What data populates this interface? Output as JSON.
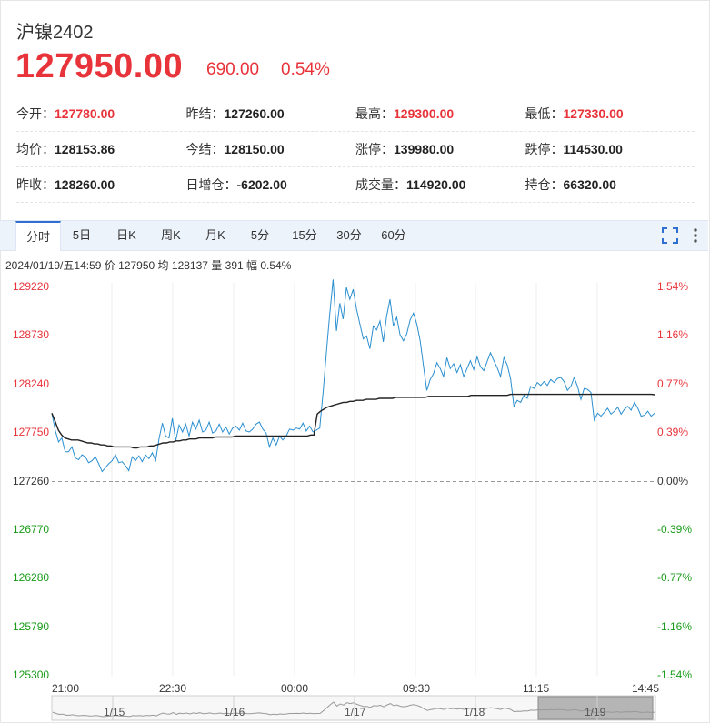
{
  "header": {
    "title": "沪镍2402",
    "price": "127950.00",
    "change": "690.00",
    "change_pct": "0.54%"
  },
  "stats": [
    [
      {
        "label": "今开：",
        "value": "127780.00",
        "red": true
      },
      {
        "label": "昨结：",
        "value": "127260.00",
        "red": false
      },
      {
        "label": "最高：",
        "value": "129300.00",
        "red": true
      },
      {
        "label": "最低：",
        "value": "127330.00",
        "red": true
      }
    ],
    [
      {
        "label": "均价：",
        "value": "128153.86",
        "red": false
      },
      {
        "label": "今结：",
        "value": "128150.00",
        "red": false
      },
      {
        "label": "涨停：",
        "value": "139980.00",
        "red": false
      },
      {
        "label": "跌停：",
        "value": "114530.00",
        "red": false
      }
    ],
    [
      {
        "label": "昨收：",
        "value": "128260.00",
        "red": false
      },
      {
        "label": "日增仓：",
        "value": "-6202.00",
        "red": false
      },
      {
        "label": "成交量：",
        "value": "114920.00",
        "red": false
      },
      {
        "label": "持仓：",
        "value": "66320.00",
        "red": false
      }
    ]
  ],
  "tabs": [
    "分时",
    "5日",
    "日K",
    "周K",
    "月K",
    "5分",
    "15分",
    "30分",
    "60分"
  ],
  "active_tab": "分时",
  "info_line": {
    "date": "2024/01/19/五14:59",
    "price_label": "价",
    "price": "127950",
    "avg_label": "均",
    "avg": "128137",
    "vol_label": "量",
    "vol": "391",
    "amp_label": "幅",
    "amp": "0.54%"
  },
  "colors": {
    "up": "#e8333a",
    "down": "#1a9c1a",
    "price_line": "#2a8fd0",
    "avg_line": "#222222",
    "accent": "#2f6fcf"
  },
  "icons": {
    "fullscreen": "fullscreen-icon",
    "more": "more-vertical-icon"
  },
  "chart_data": {
    "type": "line",
    "base": 127260,
    "y_ticks_left": [
      "129220",
      "128730",
      "128240",
      "127750",
      "127260",
      "126770",
      "126280",
      "125790",
      "125300"
    ],
    "y_ticks_right": [
      "1.54%",
      "1.16%",
      "0.77%",
      "0.39%",
      "0.00%",
      "-0.39%",
      "-0.77%",
      "-1.16%",
      "-1.54%"
    ],
    "ylim": [
      125300,
      129220
    ],
    "x_ticks": [
      "21:00",
      "22:30",
      "00:00",
      "09:30",
      "11:15",
      "14:45"
    ],
    "navigator_labels": [
      "1/15",
      "1/16",
      "1/17",
      "1/18",
      "1/19"
    ],
    "series": [
      {
        "values": [
          127950,
          127780,
          127660,
          127700,
          127560,
          127560,
          127610,
          127500,
          127480,
          127530,
          127510,
          127450,
          127470,
          127510,
          127440,
          127360,
          127400,
          127440,
          127470,
          127530,
          127450,
          127460,
          127420,
          127370,
          127510,
          127470,
          127520,
          127460,
          127530,
          127490,
          127550,
          127470,
          127690,
          127850,
          127720,
          127700,
          127900,
          127670,
          127830,
          127760,
          127840,
          127720,
          127860,
          127790,
          127880,
          127760,
          127780,
          127860,
          127750,
          127770,
          127840,
          127760,
          127810,
          127740,
          127800,
          127820,
          127780,
          127850,
          127770,
          127760,
          127790,
          127840,
          127860,
          127790,
          127750,
          127610,
          127700,
          127630,
          127720,
          127680,
          127720,
          127790,
          127780,
          127800,
          127790,
          127850,
          127770,
          127820,
          127760,
          127780,
          127800,
          128160,
          128560,
          128950,
          129300,
          128780,
          129060,
          128900,
          129220,
          129100,
          129200,
          129000,
          128850,
          128700,
          128730,
          128600,
          128830,
          128790,
          128880,
          128670,
          128930,
          129100,
          128830,
          128920,
          128740,
          128680,
          128750,
          128890,
          128960,
          128850,
          128680,
          128420,
          128180,
          128290,
          128350,
          128460,
          128400,
          128320,
          128510,
          128400,
          128450,
          128360,
          128440,
          128320,
          128400,
          128480,
          128390,
          128520,
          128420,
          128380,
          128470,
          128560,
          128480,
          128410,
          128320,
          128510,
          128440,
          128300,
          128020,
          128080,
          128060,
          128130,
          128100,
          128220,
          128200,
          128260,
          128230,
          128270,
          128230,
          128290,
          128260,
          128300,
          128310,
          128270,
          128180,
          128220,
          128310,
          128220,
          128090,
          128200,
          128190,
          128160,
          127880,
          127950,
          127920,
          127960,
          128000,
          127940,
          127970,
          128010,
          127940,
          127990,
          128020,
          127980,
          128060,
          128000,
          127920,
          127930,
          127970,
          127920,
          127950
        ],
        "name": ""
      },
      {
        "values": [
          127950,
          127870,
          127780,
          127730,
          127700,
          127690,
          127680,
          127680,
          127680,
          127670,
          127660,
          127650,
          127650,
          127640,
          127640,
          127630,
          127630,
          127620,
          127620,
          127610,
          127610,
          127610,
          127610,
          127610,
          127610,
          127600,
          127600,
          127610,
          127610,
          127610,
          127620,
          127620,
          127630,
          127640,
          127650,
          127650,
          127660,
          127660,
          127670,
          127670,
          127680,
          127680,
          127690,
          127690,
          127690,
          127700,
          127700,
          127700,
          127700,
          127700,
          127710,
          127710,
          127710,
          127710,
          127710,
          127710,
          127720,
          127720,
          127720,
          127720,
          127720,
          127720,
          127720,
          127720,
          127720,
          127720,
          127720,
          127720,
          127720,
          127720,
          127720,
          127720,
          127720,
          127720,
          127720,
          127720,
          127720,
          127720,
          127720,
          127730,
          127730,
          127940,
          127970,
          127990,
          128010,
          128020,
          128030,
          128040,
          128050,
          128060,
          128060,
          128070,
          128070,
          128080,
          128080,
          128080,
          128090,
          128090,
          128090,
          128090,
          128100,
          128100,
          128100,
          128100,
          128100,
          128110,
          128110,
          128110,
          128110,
          128110,
          128110,
          128110,
          128110,
          128110,
          128110,
          128120,
          128120,
          128120,
          128120,
          128120,
          128120,
          128120,
          128120,
          128120,
          128120,
          128120,
          128120,
          128120,
          128130,
          128130,
          128130,
          128130,
          128130,
          128130,
          128130,
          128130,
          128130,
          128130,
          128130,
          128130,
          128140,
          128140,
          128140,
          128140,
          128140,
          128140,
          128140,
          128140,
          128140,
          128140,
          128140,
          128140,
          128140,
          128140,
          128140,
          128140,
          128140,
          128140,
          128140,
          128140,
          128140,
          128140,
          128140,
          128140,
          128140,
          128140,
          128140,
          128140,
          128140,
          128140,
          128140,
          128140,
          128140,
          128140,
          128140,
          128140,
          128140,
          128140,
          128140,
          128140,
          128140,
          128140,
          128140,
          128140,
          128137
        ],
        "name": ""
      }
    ]
  }
}
